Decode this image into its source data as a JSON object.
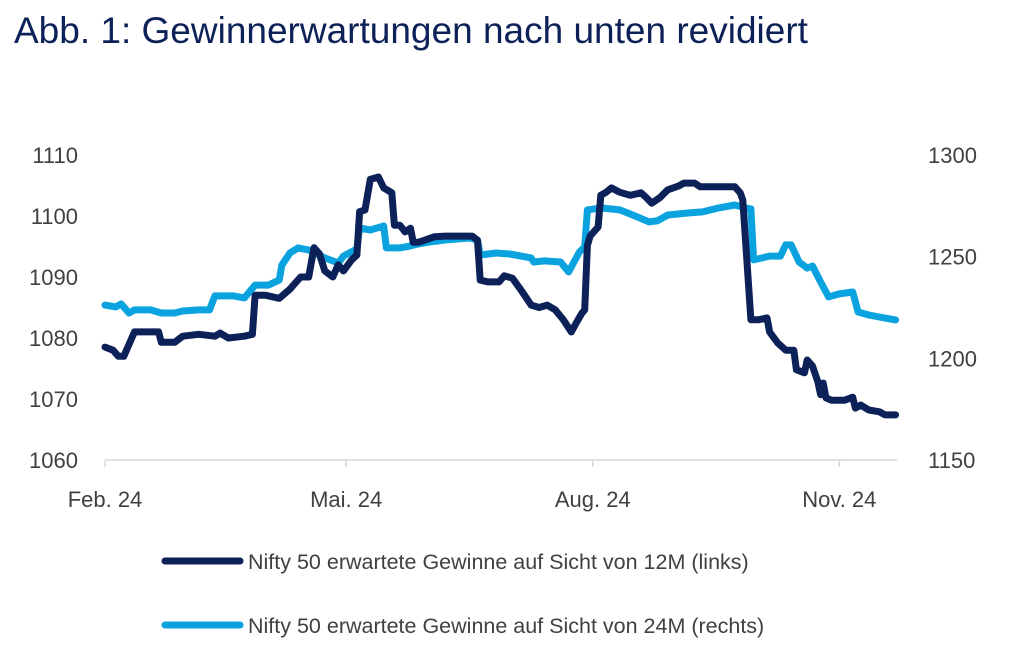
{
  "chart_data": {
    "type": "line",
    "title": "Abb. 1: Gewinnerwartungen nach unten revidiert",
    "xlabel": "",
    "ylabel": "",
    "x_ticks": [
      {
        "date": "2024-02-01",
        "label": "Feb. 24"
      },
      {
        "date": "2024-05-01",
        "label": "Mai. 24"
      },
      {
        "date": "2024-08-01",
        "label": "Aug. 24"
      },
      {
        "date": "2024-11-01",
        "label": "Nov. 24"
      }
    ],
    "y_left": {
      "range": [
        1060,
        1110
      ],
      "ticks": [
        "1060",
        "1070",
        "1080",
        "1090",
        "1100",
        "1110"
      ]
    },
    "y_right": {
      "range": [
        1150,
        1300
      ],
      "ticks": [
        "1150",
        "1200",
        "1250",
        "1300"
      ]
    },
    "grid": false,
    "legend_position": "bottom",
    "colors": {
      "series_12m": "#0d2159",
      "series_24m": "#0aa3df",
      "title": "#0d2159"
    },
    "series": [
      {
        "name": "Nifty 50 erwartete Gewinne auf Sicht von 12M (links)",
        "axis": "left",
        "points": [
          [
            "2024-02-01",
            1078.5
          ],
          [
            "2024-02-04",
            1078
          ],
          [
            "2024-02-06",
            1077
          ],
          [
            "2024-02-08",
            1077
          ],
          [
            "2024-02-10",
            1079
          ],
          [
            "2024-02-12",
            1081
          ],
          [
            "2024-02-16",
            1081
          ],
          [
            "2024-02-21",
            1081
          ],
          [
            "2024-02-22",
            1079.3
          ],
          [
            "2024-02-27",
            1079.3
          ],
          [
            "2024-03-01",
            1080.3
          ],
          [
            "2024-03-07",
            1080.6
          ],
          [
            "2024-03-13",
            1080.3
          ],
          [
            "2024-03-15",
            1080.8
          ],
          [
            "2024-03-18",
            1080
          ],
          [
            "2024-03-24",
            1080.3
          ],
          [
            "2024-03-27",
            1080.6
          ],
          [
            "2024-03-28",
            1087
          ],
          [
            "2024-04-01",
            1087
          ],
          [
            "2024-04-06",
            1086.5
          ],
          [
            "2024-04-10",
            1088
          ],
          [
            "2024-04-14",
            1090
          ],
          [
            "2024-04-17",
            1090
          ],
          [
            "2024-04-19",
            1094.8
          ],
          [
            "2024-04-21",
            1093.8
          ],
          [
            "2024-04-23",
            1091
          ],
          [
            "2024-04-26",
            1090
          ],
          [
            "2024-04-28",
            1092
          ],
          [
            "2024-04-30",
            1091
          ],
          [
            "2024-05-03",
            1092.8
          ],
          [
            "2024-05-05",
            1093.6
          ],
          [
            "2024-05-06",
            1100.7
          ],
          [
            "2024-05-08",
            1101
          ],
          [
            "2024-05-10",
            1106
          ],
          [
            "2024-05-13",
            1106.4
          ],
          [
            "2024-05-15",
            1104.6
          ],
          [
            "2024-05-18",
            1103.8
          ],
          [
            "2024-05-19",
            1098.5
          ],
          [
            "2024-05-21",
            1098.5
          ],
          [
            "2024-05-23",
            1097.4
          ],
          [
            "2024-05-25",
            1098
          ],
          [
            "2024-05-26",
            1095.7
          ],
          [
            "2024-05-28",
            1095.7
          ],
          [
            "2024-05-30",
            1096
          ],
          [
            "2024-06-03",
            1096.6
          ],
          [
            "2024-06-07",
            1096.7
          ],
          [
            "2024-06-12",
            1096.7
          ],
          [
            "2024-06-17",
            1096.7
          ],
          [
            "2024-06-19",
            1096
          ],
          [
            "2024-06-20",
            1089.5
          ],
          [
            "2024-06-23",
            1089.2
          ],
          [
            "2024-06-27",
            1089.2
          ],
          [
            "2024-06-29",
            1090.2
          ],
          [
            "2024-07-02",
            1089.8
          ],
          [
            "2024-07-05",
            1088
          ],
          [
            "2024-07-07",
            1086.7
          ],
          [
            "2024-07-09",
            1085.4
          ],
          [
            "2024-07-12",
            1085
          ],
          [
            "2024-07-15",
            1085.4
          ],
          [
            "2024-07-18",
            1084.6
          ],
          [
            "2024-07-21",
            1083
          ],
          [
            "2024-07-24",
            1081
          ],
          [
            "2024-07-26",
            1082.6
          ],
          [
            "2024-07-28",
            1084.1
          ],
          [
            "2024-07-29",
            1084.6
          ],
          [
            "2024-07-30",
            1095.2
          ],
          [
            "2024-07-31",
            1096.7
          ],
          [
            "2024-08-03",
            1098.2
          ],
          [
            "2024-08-04",
            1103.4
          ],
          [
            "2024-08-06",
            1103.9
          ],
          [
            "2024-08-08",
            1104.6
          ],
          [
            "2024-08-11",
            1103.9
          ],
          [
            "2024-08-15",
            1103.4
          ],
          [
            "2024-08-19",
            1103.8
          ],
          [
            "2024-08-21",
            1103
          ],
          [
            "2024-08-23",
            1102.1
          ],
          [
            "2024-08-26",
            1103
          ],
          [
            "2024-08-29",
            1104.3
          ],
          [
            "2024-09-02",
            1104.9
          ],
          [
            "2024-09-04",
            1105.4
          ],
          [
            "2024-09-08",
            1105.4
          ],
          [
            "2024-09-10",
            1104.8
          ],
          [
            "2024-09-17",
            1104.8
          ],
          [
            "2024-09-23",
            1104.8
          ],
          [
            "2024-09-25",
            1103.8
          ],
          [
            "2024-09-26",
            1102.6
          ],
          [
            "2024-09-29",
            1083
          ],
          [
            "2024-10-02",
            1083
          ],
          [
            "2024-10-05",
            1083.3
          ],
          [
            "2024-10-06",
            1081
          ],
          [
            "2024-10-09",
            1079.2
          ],
          [
            "2024-10-12",
            1078
          ],
          [
            "2024-10-15",
            1078
          ],
          [
            "2024-10-16",
            1074.8
          ],
          [
            "2024-10-19",
            1074.3
          ],
          [
            "2024-10-20",
            1076.4
          ],
          [
            "2024-10-22",
            1075.4
          ],
          [
            "2024-10-24",
            1072.8
          ],
          [
            "2024-10-25",
            1070.7
          ],
          [
            "2024-10-26",
            1072.6
          ],
          [
            "2024-10-27",
            1070.2
          ],
          [
            "2024-10-29",
            1069.8
          ],
          [
            "2024-11-03",
            1069.8
          ],
          [
            "2024-11-06",
            1070.3
          ],
          [
            "2024-11-07",
            1068.5
          ],
          [
            "2024-11-09",
            1069
          ],
          [
            "2024-11-12",
            1068.2
          ],
          [
            "2024-11-16",
            1067.9
          ],
          [
            "2024-11-18",
            1067.4
          ],
          [
            "2024-11-22",
            1067.4
          ]
        ]
      },
      {
        "name": "Nifty 50 erwartete Gewinne auf Sicht von 24M (rechts)",
        "axis": "right",
        "points": [
          [
            "2024-02-01",
            1226.2
          ],
          [
            "2024-02-05",
            1225.3
          ],
          [
            "2024-02-07",
            1226.7
          ],
          [
            "2024-02-10",
            1222.3
          ],
          [
            "2024-02-12",
            1223.8
          ],
          [
            "2024-02-18",
            1223.8
          ],
          [
            "2024-02-22",
            1222.3
          ],
          [
            "2024-02-27",
            1222.3
          ],
          [
            "2024-03-01",
            1223.3
          ],
          [
            "2024-03-07",
            1223.8
          ],
          [
            "2024-03-11",
            1223.8
          ],
          [
            "2024-03-13",
            1230.7
          ],
          [
            "2024-03-20",
            1230.7
          ],
          [
            "2024-03-24",
            1229.7
          ],
          [
            "2024-03-28",
            1236
          ],
          [
            "2024-04-02",
            1236
          ],
          [
            "2024-04-06",
            1238.5
          ],
          [
            "2024-04-07",
            1245.9
          ],
          [
            "2024-04-10",
            1251.8
          ],
          [
            "2024-04-13",
            1254.3
          ],
          [
            "2024-04-17",
            1253.3
          ],
          [
            "2024-04-23",
            1249.4
          ],
          [
            "2024-04-28",
            1246.9
          ],
          [
            "2024-04-30",
            1250.3
          ],
          [
            "2024-05-05",
            1253.8
          ],
          [
            "2024-05-06",
            1264.1
          ],
          [
            "2024-05-10",
            1263.1
          ],
          [
            "2024-05-15",
            1265.1
          ],
          [
            "2024-05-16",
            1254.3
          ],
          [
            "2024-05-21",
            1254.3
          ],
          [
            "2024-05-25",
            1255.3
          ],
          [
            "2024-05-28",
            1256.3
          ],
          [
            "2024-06-01",
            1257.2
          ],
          [
            "2024-06-07",
            1258.2
          ],
          [
            "2024-06-16",
            1259.2
          ],
          [
            "2024-06-19",
            1258.2
          ],
          [
            "2024-06-20",
            1250.8
          ],
          [
            "2024-06-26",
            1251.8
          ],
          [
            "2024-07-01",
            1251.3
          ],
          [
            "2024-07-09",
            1249.4
          ],
          [
            "2024-07-10",
            1247.4
          ],
          [
            "2024-07-14",
            1247.9
          ],
          [
            "2024-07-20",
            1247.4
          ],
          [
            "2024-07-23",
            1242.5
          ],
          [
            "2024-07-25",
            1247.4
          ],
          [
            "2024-07-27",
            1252.3
          ],
          [
            "2024-07-29",
            1254.8
          ],
          [
            "2024-07-30",
            1273
          ],
          [
            "2024-08-04",
            1274
          ],
          [
            "2024-08-11",
            1273
          ],
          [
            "2024-08-15",
            1271
          ],
          [
            "2024-08-22",
            1267.1
          ],
          [
            "2024-08-25",
            1267.6
          ],
          [
            "2024-08-29",
            1270.5
          ],
          [
            "2024-09-06",
            1271.5
          ],
          [
            "2024-09-11",
            1272
          ],
          [
            "2024-09-17",
            1274
          ],
          [
            "2024-09-23",
            1275.4
          ],
          [
            "2024-09-27",
            1274
          ],
          [
            "2024-09-29",
            1273.5
          ],
          [
            "2024-09-30",
            1248.4
          ],
          [
            "2024-10-06",
            1250.3
          ],
          [
            "2024-10-10",
            1250.3
          ],
          [
            "2024-10-12",
            1255.8
          ],
          [
            "2024-10-14",
            1255.8
          ],
          [
            "2024-10-17",
            1247.4
          ],
          [
            "2024-10-20",
            1244.4
          ],
          [
            "2024-10-22",
            1245.4
          ],
          [
            "2024-10-25",
            1237.6
          ],
          [
            "2024-10-28",
            1230.2
          ],
          [
            "2024-11-01",
            1231.7
          ],
          [
            "2024-11-06",
            1232.6
          ],
          [
            "2024-11-08",
            1222.8
          ],
          [
            "2024-11-12",
            1221.3
          ],
          [
            "2024-11-18",
            1219.8
          ],
          [
            "2024-11-22",
            1218.9
          ]
        ]
      }
    ]
  }
}
